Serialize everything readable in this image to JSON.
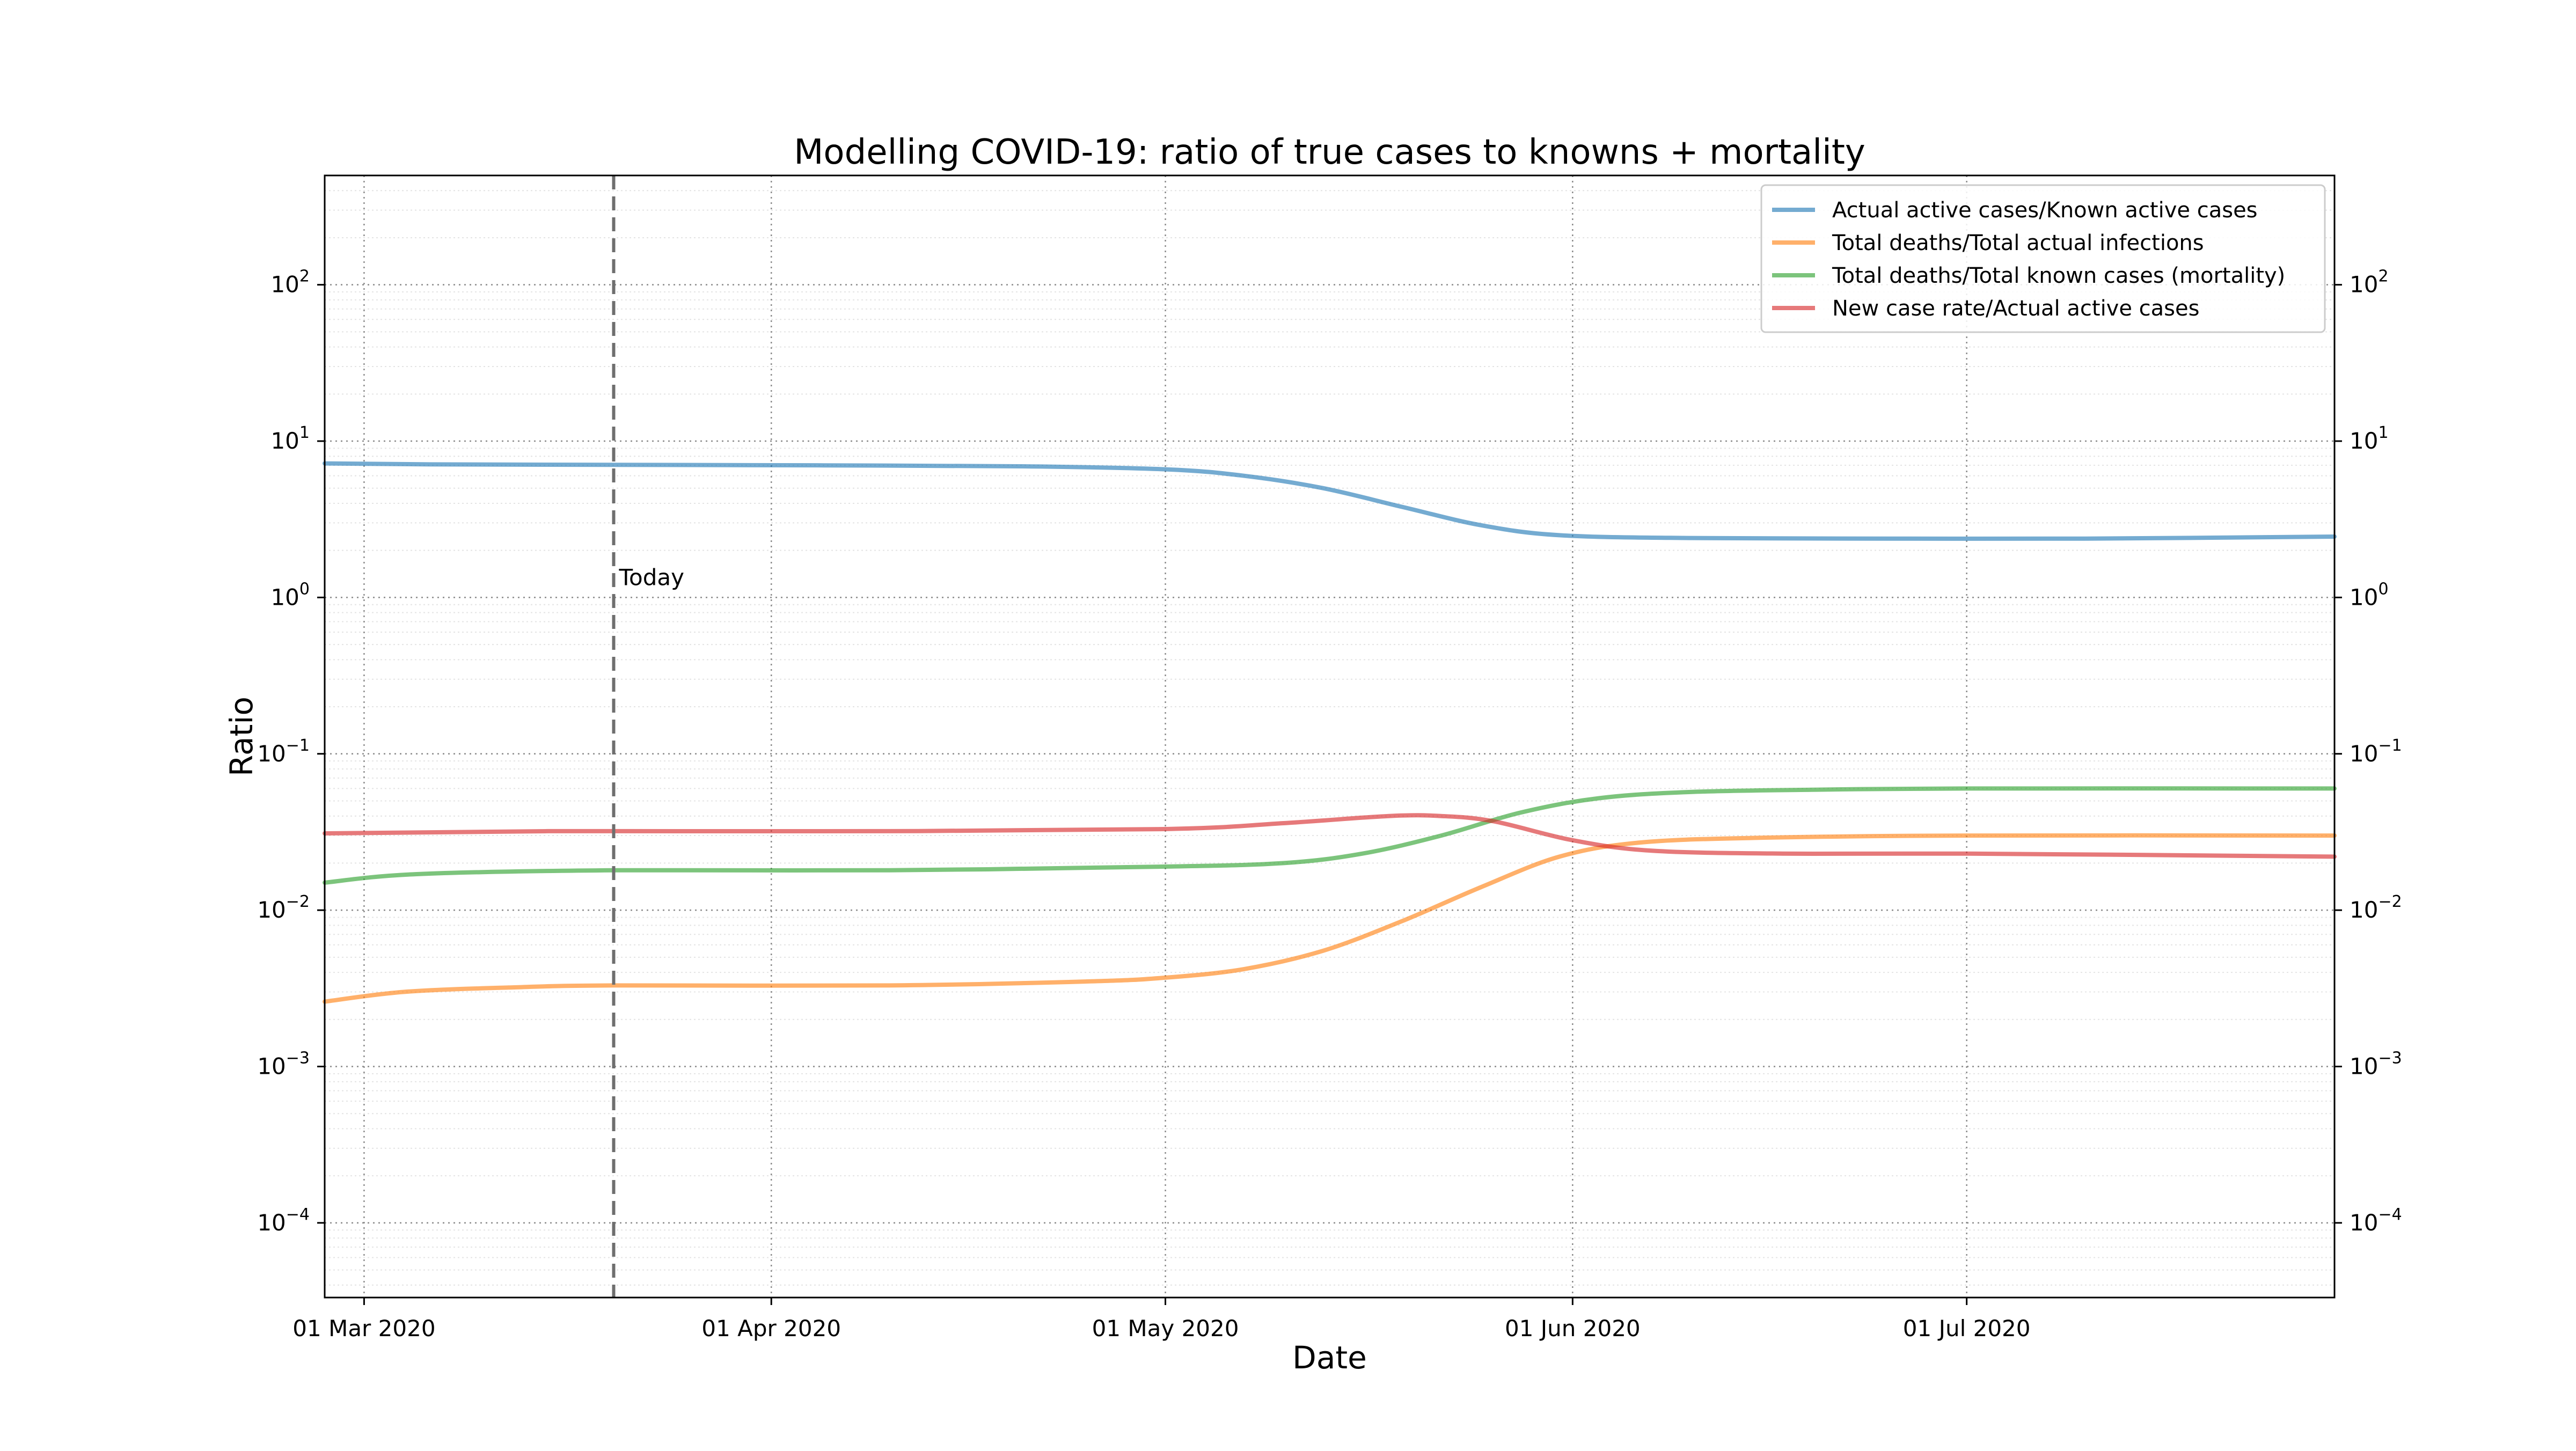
{
  "chart_data": {
    "type": "line",
    "title": "Modelling COVID-19: ratio of true cases to knowns + mortality",
    "xlabel": "Date",
    "ylabel": "Ratio",
    "y_scale": "log",
    "ylim": [
      3.33e-05,
      500
    ],
    "xlim": [
      "2020-02-27",
      "2020-07-29"
    ],
    "grid": true,
    "legend_position": "top-right",
    "x_ticks": [
      {
        "date": "2020-03-01",
        "label": "01 Mar 2020"
      },
      {
        "date": "2020-04-01",
        "label": "01 Apr 2020"
      },
      {
        "date": "2020-05-01",
        "label": "01 May 2020"
      },
      {
        "date": "2020-06-01",
        "label": "01 Jun 2020"
      },
      {
        "date": "2020-07-01",
        "label": "01 Jul 2020"
      }
    ],
    "y_ticks": [
      {
        "value": 100,
        "exp": "2"
      },
      {
        "value": 10,
        "exp": "1"
      },
      {
        "value": 1,
        "exp": "0"
      },
      {
        "value": 0.1,
        "exp": "−1"
      },
      {
        "value": 0.01,
        "exp": "−2"
      },
      {
        "value": 0.001,
        "exp": "−3"
      },
      {
        "value": 0.0001,
        "exp": "−4"
      }
    ],
    "y_tick_base": "10",
    "annotations": [
      {
        "date": "2020-03-20",
        "label": "Today",
        "style": "dashed-vertical-line",
        "label_y": 1.2
      }
    ],
    "series": [
      {
        "name": "Actual active cases/Known active cases",
        "color": "#1f77b4",
        "points": [
          [
            "2020-02-27",
            7.2
          ],
          [
            "2020-03-06",
            7.1
          ],
          [
            "2020-03-20",
            7.05
          ],
          [
            "2020-04-05",
            7.0
          ],
          [
            "2020-04-20",
            6.9
          ],
          [
            "2020-05-01",
            6.6
          ],
          [
            "2020-05-07",
            6.0
          ],
          [
            "2020-05-13",
            5.0
          ],
          [
            "2020-05-19",
            3.8
          ],
          [
            "2020-05-25",
            2.9
          ],
          [
            "2020-05-31",
            2.5
          ],
          [
            "2020-06-10",
            2.4
          ],
          [
            "2020-06-25",
            2.38
          ],
          [
            "2020-07-10",
            2.38
          ],
          [
            "2020-07-29",
            2.45
          ]
        ]
      },
      {
        "name": "Total deaths/Total actual infections",
        "color": "#ff7f0e",
        "points": [
          [
            "2020-02-27",
            0.0026
          ],
          [
            "2020-03-04",
            0.003
          ],
          [
            "2020-03-12",
            0.0032
          ],
          [
            "2020-03-20",
            0.0033
          ],
          [
            "2020-04-10",
            0.0033
          ],
          [
            "2020-04-25",
            0.0035
          ],
          [
            "2020-05-01",
            0.0037
          ],
          [
            "2020-05-07",
            0.0042
          ],
          [
            "2020-05-13",
            0.0055
          ],
          [
            "2020-05-19",
            0.0085
          ],
          [
            "2020-05-25",
            0.014
          ],
          [
            "2020-05-31",
            0.022
          ],
          [
            "2020-06-06",
            0.027
          ],
          [
            "2020-06-15",
            0.029
          ],
          [
            "2020-07-01",
            0.03
          ],
          [
            "2020-07-29",
            0.03
          ]
        ]
      },
      {
        "name": "Total deaths/Total known cases (mortality)",
        "color": "#2ca02c",
        "points": [
          [
            "2020-02-27",
            0.015
          ],
          [
            "2020-03-05",
            0.017
          ],
          [
            "2020-03-20",
            0.018
          ],
          [
            "2020-04-10",
            0.018
          ],
          [
            "2020-05-01",
            0.019
          ],
          [
            "2020-05-10",
            0.02
          ],
          [
            "2020-05-16",
            0.023
          ],
          [
            "2020-05-22",
            0.03
          ],
          [
            "2020-05-28",
            0.042
          ],
          [
            "2020-06-03",
            0.052
          ],
          [
            "2020-06-10",
            0.057
          ],
          [
            "2020-06-20",
            0.059
          ],
          [
            "2020-07-01",
            0.06
          ],
          [
            "2020-07-29",
            0.06
          ]
        ]
      },
      {
        "name": "New case rate/Actual active cases",
        "color": "#d62728",
        "points": [
          [
            "2020-02-27",
            0.031
          ],
          [
            "2020-03-15",
            0.032
          ],
          [
            "2020-04-10",
            0.032
          ],
          [
            "2020-05-01",
            0.033
          ],
          [
            "2020-05-10",
            0.036
          ],
          [
            "2020-05-18",
            0.04
          ],
          [
            "2020-05-22",
            0.04
          ],
          [
            "2020-05-26",
            0.037
          ],
          [
            "2020-06-01",
            0.028
          ],
          [
            "2020-06-07",
            0.024
          ],
          [
            "2020-06-17",
            0.023
          ],
          [
            "2020-07-01",
            0.023
          ],
          [
            "2020-07-29",
            0.022
          ]
        ]
      }
    ]
  }
}
